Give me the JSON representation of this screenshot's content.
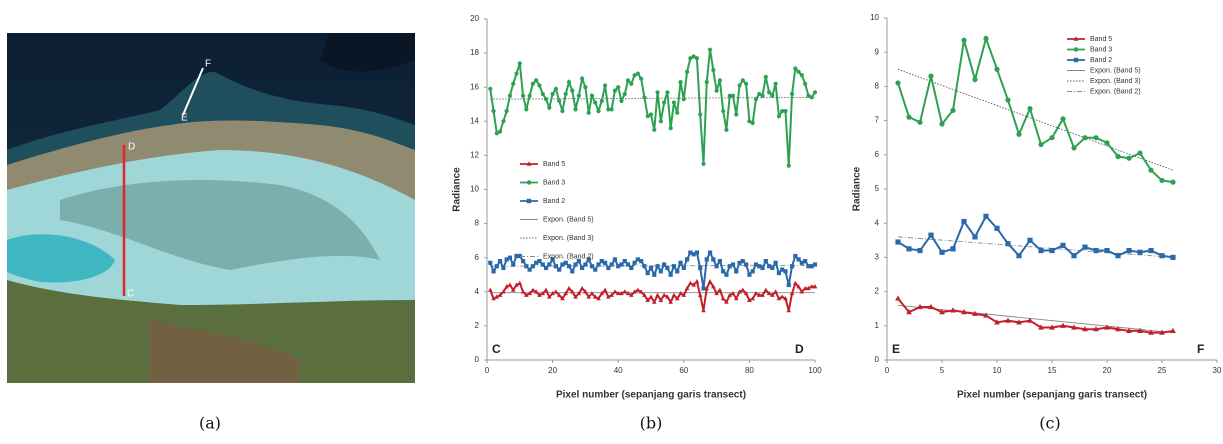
{
  "panel_labels": [
    "(a)",
    "(b)",
    "(c)"
  ],
  "image_labels": [
    "C",
    "D",
    "E",
    "F"
  ],
  "chart_data": [
    {
      "type": "line",
      "xlabel": "Pixel number (sepanjang garis transect)",
      "ylabel": "Radiance",
      "xlim": [
        0,
        100
      ],
      "xticks": [
        0,
        20,
        40,
        60,
        80,
        100
      ],
      "ylim": [
        0,
        20
      ],
      "yticks": [
        0,
        2,
        4,
        6,
        8,
        10,
        12,
        14,
        16,
        18,
        20
      ],
      "legend_loc": "center left",
      "corner_labels": [
        "C",
        "D"
      ],
      "x": [
        1,
        2,
        3,
        4,
        5,
        6,
        7,
        8,
        9,
        10,
        11,
        12,
        13,
        14,
        15,
        16,
        17,
        18,
        19,
        20,
        21,
        22,
        23,
        24,
        25,
        26,
        27,
        28,
        29,
        30,
        31,
        32,
        33,
        34,
        35,
        36,
        37,
        38,
        39,
        40,
        41,
        42,
        43,
        44,
        45,
        46,
        47,
        48,
        49,
        50,
        51,
        52,
        53,
        54,
        55,
        56,
        57,
        58,
        59,
        60,
        61,
        62,
        63,
        64,
        65,
        66,
        67,
        68,
        69,
        70,
        71,
        72,
        73,
        74,
        75,
        76,
        77,
        78,
        79,
        80,
        81,
        82,
        83,
        84,
        85,
        86,
        87,
        88,
        89,
        90,
        91,
        92,
        93,
        94,
        95,
        96,
        97,
        98,
        99,
        100
      ],
      "series": [
        {
          "name": "Band 5",
          "color": "#c0202a",
          "marker": "triangle",
          "values": [
            4.1,
            3.6,
            3.7,
            3.8,
            4.0,
            4.3,
            4.4,
            4.1,
            4.4,
            4.5,
            4.0,
            3.8,
            3.9,
            4.1,
            4.0,
            3.8,
            3.9,
            4.1,
            3.7,
            3.9,
            4.0,
            3.8,
            3.6,
            3.9,
            4.2,
            4.0,
            3.7,
            3.9,
            4.2,
            4.0,
            3.7,
            3.9,
            3.7,
            3.6,
            3.9,
            4.1,
            3.7,
            3.8,
            4.0,
            3.9,
            3.9,
            4.0,
            3.9,
            3.8,
            4.0,
            4.1,
            4.0,
            3.8,
            3.5,
            3.7,
            3.4,
            3.8,
            3.5,
            3.8,
            3.7,
            3.4,
            3.8,
            3.6,
            3.9,
            3.8,
            4.2,
            4.5,
            4.4,
            4.6,
            3.8,
            2.9,
            4.2,
            4.6,
            4.3,
            3.9,
            4.1,
            3.6,
            3.4,
            3.8,
            3.9,
            3.6,
            4.0,
            4.1,
            3.9,
            3.5,
            3.6,
            3.9,
            3.8,
            3.8,
            4.1,
            3.9,
            3.8,
            4.0,
            3.6,
            3.7,
            3.6,
            2.9,
            3.9,
            4.5,
            4.3,
            4.0,
            4.2,
            4.2,
            4.3,
            4.3
          ]
        },
        {
          "name": "Band 3",
          "color": "#2ea052",
          "marker": "circle",
          "values": [
            15.9,
            14.6,
            13.3,
            13.4,
            14.0,
            14.6,
            15.5,
            16.2,
            16.8,
            17.4,
            15.5,
            14.7,
            15.5,
            16.2,
            16.4,
            16.1,
            15.6,
            15.3,
            14.8,
            15.6,
            15.9,
            15.2,
            14.6,
            15.6,
            16.3,
            15.8,
            14.7,
            15.5,
            16.5,
            16.0,
            14.5,
            15.5,
            15.1,
            14.6,
            15.2,
            16.1,
            14.7,
            14.7,
            15.8,
            16.0,
            15.2,
            15.6,
            16.4,
            16.2,
            16.7,
            16.8,
            16.5,
            15.4,
            14.3,
            14.4,
            13.5,
            15.7,
            14.0,
            15.1,
            15.7,
            13.6,
            15.1,
            14.5,
            16.3,
            15.3,
            16.9,
            17.7,
            17.8,
            17.7,
            14.4,
            11.5,
            16.3,
            18.2,
            17.0,
            15.8,
            16.4,
            14.6,
            13.5,
            15.5,
            15.5,
            14.4,
            16.1,
            16.4,
            16.2,
            14.0,
            13.9,
            15.3,
            15.6,
            15.5,
            16.6,
            15.7,
            15.5,
            16.2,
            14.3,
            14.6,
            14.6,
            11.4,
            15.6,
            17.1,
            16.9,
            16.7,
            16.2,
            15.5,
            15.4,
            15.7
          ]
        },
        {
          "name": "Band 2",
          "color": "#2a6aaa",
          "marker": "square",
          "values": [
            5.7,
            5.2,
            5.5,
            5.8,
            5.4,
            5.9,
            6.0,
            5.6,
            6.1,
            6.1,
            5.8,
            5.5,
            5.3,
            5.5,
            5.7,
            5.8,
            5.6,
            5.4,
            5.6,
            5.9,
            5.5,
            5.3,
            5.6,
            5.7,
            5.5,
            5.2,
            5.6,
            5.8,
            5.4,
            5.6,
            5.9,
            5.5,
            5.3,
            5.6,
            5.8,
            5.7,
            5.4,
            5.6,
            5.9,
            5.5,
            5.6,
            5.8,
            5.6,
            5.4,
            5.7,
            5.9,
            5.8,
            5.5,
            5.1,
            5.4,
            5.0,
            5.5,
            5.2,
            5.6,
            5.4,
            5.0,
            5.5,
            5.2,
            5.7,
            5.4,
            5.9,
            6.3,
            6.2,
            6.3,
            5.4,
            4.2,
            5.9,
            6.3,
            5.9,
            5.5,
            5.8,
            5.2,
            5.0,
            5.5,
            5.6,
            5.2,
            5.7,
            5.8,
            5.6,
            5.0,
            5.2,
            5.6,
            5.5,
            5.4,
            5.8,
            5.5,
            5.4,
            5.7,
            5.1,
            5.3,
            5.2,
            4.4,
            5.5,
            6.1,
            5.9,
            5.7,
            5.8,
            5.5,
            5.5,
            5.6
          ]
        },
        {
          "name": "Expon. (Band 5)",
          "color": "#888888",
          "linestyle": "solid",
          "x": [
            1,
            100
          ],
          "values": [
            3.95,
            3.95
          ]
        },
        {
          "name": "Expon. (Band 3)",
          "color": "#666666",
          "linestyle": "dotted",
          "x": [
            1,
            100
          ],
          "values": [
            15.3,
            15.4
          ]
        },
        {
          "name": "Expon. (Band 2)",
          "color": "#888888",
          "linestyle": "dashdot",
          "x": [
            1,
            100
          ],
          "values": [
            5.5,
            5.55
          ]
        }
      ]
    },
    {
      "type": "line",
      "xlabel": "Pixel number (sepanjang garis transect)",
      "ylabel": "Radiance",
      "xlim": [
        0,
        30
      ],
      "xticks": [
        0,
        5,
        10,
        15,
        20,
        25,
        30
      ],
      "ylim": [
        0,
        10
      ],
      "yticks": [
        0,
        1,
        2,
        3,
        4,
        5,
        6,
        7,
        8,
        9,
        10
      ],
      "legend_loc": "upper center",
      "corner_labels": [
        "E",
        "F"
      ],
      "x": [
        1,
        2,
        3,
        4,
        5,
        6,
        7,
        8,
        9,
        10,
        11,
        12,
        13,
        14,
        15,
        16,
        17,
        18,
        19,
        20,
        21,
        22,
        23,
        24,
        25,
        26
      ],
      "series": [
        {
          "name": "Band 5",
          "color": "#c0202a",
          "marker": "triangle",
          "values": [
            1.8,
            1.4,
            1.55,
            1.55,
            1.4,
            1.45,
            1.4,
            1.35,
            1.3,
            1.1,
            1.15,
            1.1,
            1.15,
            0.95,
            0.95,
            1.0,
            0.95,
            0.9,
            0.9,
            0.95,
            0.9,
            0.85,
            0.85,
            0.8,
            0.8,
            0.85
          ]
        },
        {
          "name": "Band 3",
          "color": "#2ea052",
          "marker": "circle",
          "values": [
            8.1,
            7.1,
            6.95,
            8.3,
            6.9,
            7.3,
            9.35,
            8.2,
            9.4,
            8.5,
            7.6,
            6.6,
            7.35,
            6.3,
            6.5,
            7.05,
            6.2,
            6.5,
            6.5,
            6.35,
            5.95,
            5.9,
            6.05,
            5.55,
            5.25,
            5.2
          ]
        },
        {
          "name": "Band 2",
          "color": "#2a6aaa",
          "marker": "square",
          "values": [
            3.45,
            3.25,
            3.2,
            3.65,
            3.15,
            3.25,
            4.05,
            3.6,
            4.2,
            3.85,
            3.4,
            3.05,
            3.5,
            3.2,
            3.2,
            3.35,
            3.05,
            3.3,
            3.2,
            3.2,
            3.05,
            3.2,
            3.15,
            3.2,
            3.05,
            3.0
          ]
        },
        {
          "name": "Expon. (Band 5)",
          "color": "#888888",
          "linestyle": "solid",
          "x": [
            1,
            26
          ],
          "values": [
            1.6,
            0.8
          ]
        },
        {
          "name": "Expon. (Band 3)",
          "color": "#555555",
          "linestyle": "dotted",
          "x": [
            1,
            26
          ],
          "values": [
            8.5,
            5.55
          ]
        },
        {
          "name": "Expon. (Band 2)",
          "color": "#888888",
          "linestyle": "dashdot",
          "x": [
            1,
            26
          ],
          "values": [
            3.6,
            3.0
          ]
        }
      ]
    }
  ]
}
